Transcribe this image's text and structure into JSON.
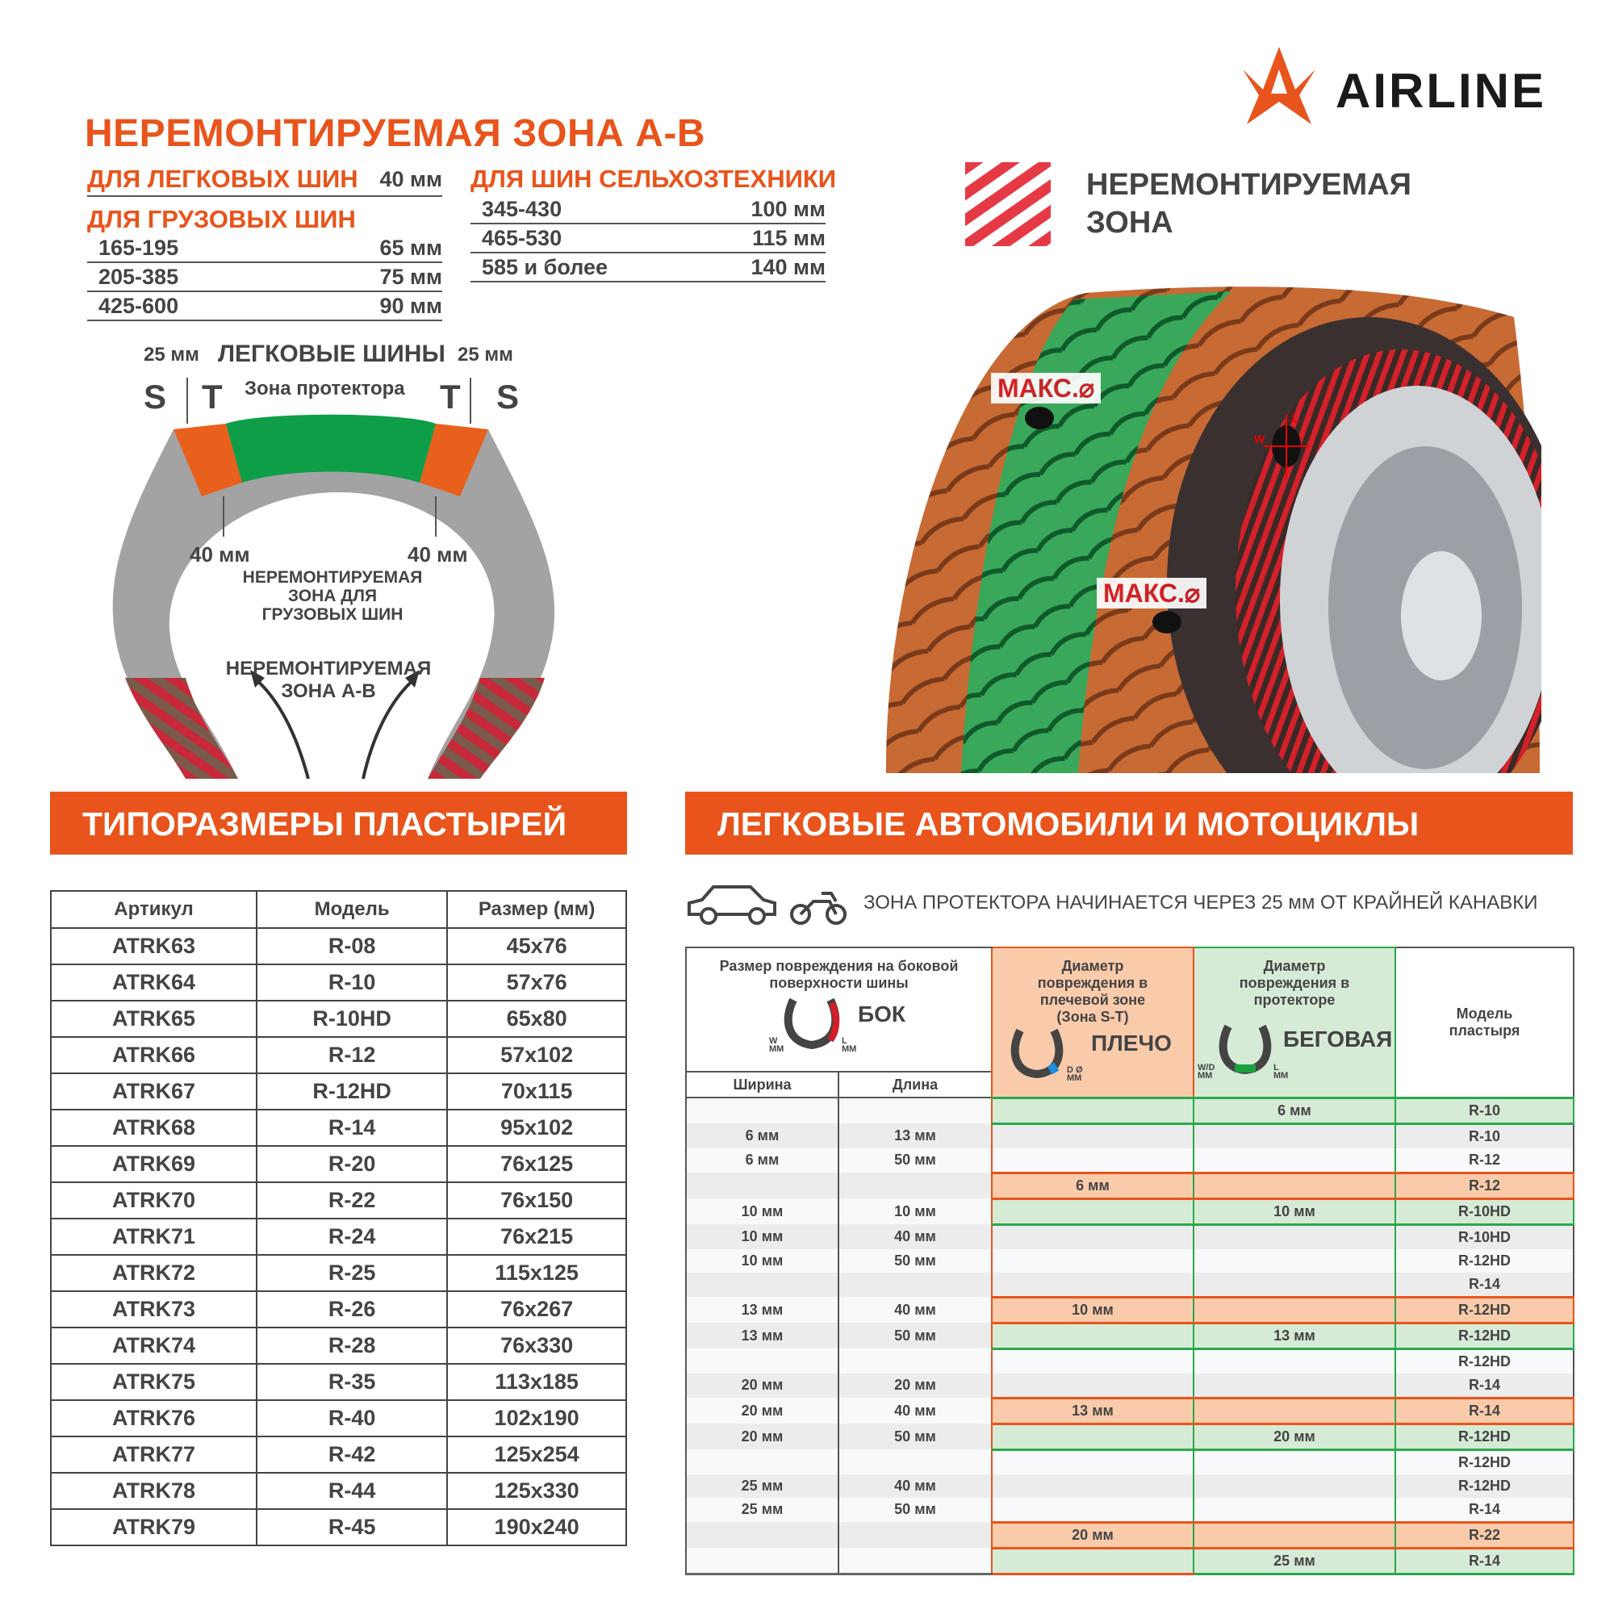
{
  "brand": {
    "name": "AIRLINE",
    "logo_icon": "airline-star-logo",
    "accent": "#e8541c"
  },
  "title": "НЕРЕМОНТИРУЕМАЯ ЗОНА А-В",
  "passenger": {
    "label": "ДЛЯ ЛЕГКОВЫХ ШИН",
    "value": "40 мм"
  },
  "truck": {
    "label": "ДЛЯ ГРУЗОВЫХ ШИН",
    "rows": [
      {
        "size": "165-195",
        "value": "65 мм"
      },
      {
        "size": "205-385",
        "value": "75 мм"
      },
      {
        "size": "425-600",
        "value": "90 мм"
      }
    ]
  },
  "agri": {
    "label": "ДЛЯ ШИН СЕЛЬХОЗТЕХНИКИ",
    "rows": [
      {
        "size": "345-430",
        "value": "100 мм"
      },
      {
        "size": "465-530",
        "value": "115 мм"
      },
      {
        "size": "585 и более",
        "value": "140 мм"
      }
    ]
  },
  "legend": {
    "line1": "НЕРЕМОНТИРУЕМАЯ",
    "line2": "ЗОНА",
    "stripe_color": "#e63946"
  },
  "diagram": {
    "left_mm": "25 мм",
    "title": "ЛЕГКОВЫЕ ШИНЫ",
    "right_mm": "25 мм",
    "s": "S",
    "t": "T",
    "tread_zone": "Зона протектора",
    "mm40_left": "40 мм",
    "mm40_right": "40 мм",
    "truck_zone_1": "НЕРЕМОНТИРУЕМАЯ",
    "truck_zone_2": "ЗОНА ДЛЯ",
    "truck_zone_3": "ГРУЗОВЫХ ШИН",
    "ab_zone_1": "НЕРЕМОНТИРУЕМАЯ",
    "ab_zone_2": "ЗОНА А-В",
    "colors": {
      "tread": "#0e9e48",
      "shoulder": "#e8601c",
      "sidewall": "#a3a3a3",
      "bead": "#c8283a"
    }
  },
  "tire": {
    "max_label_1": "МАКС.⌀",
    "max_label_2": "МАКС.⌀",
    "w": "W",
    "l": "L"
  },
  "patch_sizes": {
    "banner": "ТИПОРАЗМЕРЫ ПЛАСТЫРЕЙ",
    "headers": [
      "Артикул",
      "Модель",
      "Размер (мм)"
    ],
    "rows": [
      [
        "ATRK63",
        "R-08",
        "45x76"
      ],
      [
        "ATRK64",
        "R-10",
        "57x76"
      ],
      [
        "ATRK65",
        "R-10HD",
        "65x80"
      ],
      [
        "ATRK66",
        "R-12",
        "57x102"
      ],
      [
        "ATRK67",
        "R-12HD",
        "70x115"
      ],
      [
        "ATRK68",
        "R-14",
        "95x102"
      ],
      [
        "ATRK69",
        "R-20",
        "76x125"
      ],
      [
        "ATRK70",
        "R-22",
        "76x150"
      ],
      [
        "ATRK71",
        "R-24",
        "76x215"
      ],
      [
        "ATRK72",
        "R-25",
        "115x125"
      ],
      [
        "ATRK73",
        "R-26",
        "76x267"
      ],
      [
        "ATRK74",
        "R-28",
        "76x330"
      ],
      [
        "ATRK75",
        "R-35",
        "113x185"
      ],
      [
        "ATRK76",
        "R-40",
        "102x190"
      ],
      [
        "ATRK77",
        "R-42",
        "125x254"
      ],
      [
        "ATRK78",
        "R-44",
        "125x330"
      ],
      [
        "ATRK79",
        "R-45",
        "190x240"
      ]
    ]
  },
  "cars": {
    "banner": "ЛЕГКОВЫЕ АВТОМОБИЛИ И МОТОЦИКЛЫ",
    "icons": [
      "car-icon",
      "motorcycle-icon"
    ],
    "note": "ЗОНА ПРОТЕКТОРА НАЧИНАЕТСЯ ЧЕРЕЗ 25 мм ОТ КРАЙНЕЙ КАНАВКИ",
    "header": {
      "side": "Размер повреждения на боковой поверхности шины",
      "side_label": "БОК",
      "side_w": "W",
      "side_l": "L",
      "mm": "ММ",
      "width": "Ширина",
      "length": "Длина",
      "shoulder": "Диаметр повреждения в плечевой зоне (Зона S-T)",
      "shoulder_label": "ПЛЕЧО",
      "shoulder_d": "D Ø",
      "tread": "Диаметр повреждения в протекторе",
      "tread_label": "БЕГОВАЯ",
      "tread_wd": "W/D",
      "tread_l": "L",
      "model": "Модель пластыря"
    },
    "rows": [
      {
        "w": "",
        "l": "",
        "sh": "",
        "tr": "6 мм",
        "m": "R-10",
        "type": "tread"
      },
      {
        "w": "6 мм",
        "l": "13 мм",
        "sh": "",
        "tr": "",
        "m": "R-10",
        "type": ""
      },
      {
        "w": "6 мм",
        "l": "50 мм",
        "sh": "",
        "tr": "",
        "m": "R-12",
        "type": ""
      },
      {
        "w": "",
        "l": "",
        "sh": "6 мм",
        "tr": "",
        "m": "R-12",
        "type": "shoulder"
      },
      {
        "w": "10 мм",
        "l": "10 мм",
        "sh": "",
        "tr": "10 мм",
        "m": "R-10HD",
        "type": "tread"
      },
      {
        "w": "10 мм",
        "l": "40 мм",
        "sh": "",
        "tr": "",
        "m": "R-10HD",
        "type": ""
      },
      {
        "w": "10 мм",
        "l": "50 мм",
        "sh": "",
        "tr": "",
        "m": "R-12HD",
        "type": ""
      },
      {
        "w": "",
        "l": "",
        "sh": "",
        "tr": "",
        "m": "R-14",
        "type": ""
      },
      {
        "w": "13 мм",
        "l": "40 мм",
        "sh": "10 мм",
        "tr": "",
        "m": "R-12HD",
        "type": "shoulder"
      },
      {
        "w": "13 мм",
        "l": "50 мм",
        "sh": "",
        "tr": "13 мм",
        "m": "R-12HD",
        "type": "tread"
      },
      {
        "w": "",
        "l": "",
        "sh": "",
        "tr": "",
        "m": "R-12HD",
        "type": ""
      },
      {
        "w": "20 мм",
        "l": "20 мм",
        "sh": "",
        "tr": "",
        "m": "R-14",
        "type": ""
      },
      {
        "w": "20 мм",
        "l": "40 мм",
        "sh": "13 мм",
        "tr": "",
        "m": "R-14",
        "type": "shoulder"
      },
      {
        "w": "20 мм",
        "l": "50 мм",
        "sh": "",
        "tr": "20 мм",
        "m": "R-12HD",
        "type": "tread"
      },
      {
        "w": "",
        "l": "",
        "sh": "",
        "tr": "",
        "m": "R-12HD",
        "type": ""
      },
      {
        "w": "25 мм",
        "l": "40 мм",
        "sh": "",
        "tr": "",
        "m": "R-12HD",
        "type": ""
      },
      {
        "w": "25 мм",
        "l": "50 мм",
        "sh": "",
        "tr": "",
        "m": "R-14",
        "type": ""
      },
      {
        "w": "",
        "l": "",
        "sh": "20 мм",
        "tr": "",
        "m": "R-22",
        "type": "shoulder"
      },
      {
        "w": "",
        "l": "",
        "sh": "",
        "tr": "25 мм",
        "m": "R-14",
        "type": "tread"
      }
    ]
  }
}
